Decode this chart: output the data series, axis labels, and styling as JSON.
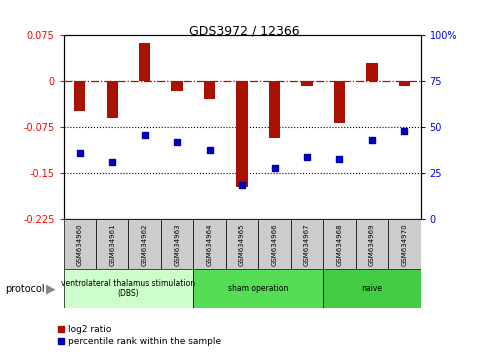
{
  "title": "GDS3972 / 12366",
  "samples": [
    "GSM634960",
    "GSM634961",
    "GSM634962",
    "GSM634963",
    "GSM634964",
    "GSM634965",
    "GSM634966",
    "GSM634967",
    "GSM634968",
    "GSM634969",
    "GSM634970"
  ],
  "log2_ratio": [
    -0.048,
    -0.06,
    0.063,
    -0.015,
    -0.028,
    -0.172,
    -0.093,
    -0.007,
    -0.068,
    0.03,
    -0.008
  ],
  "percentile_rank": [
    36,
    31,
    46,
    42,
    38,
    19,
    28,
    34,
    33,
    43,
    48
  ],
  "groups": [
    {
      "label": "ventrolateral thalamus stimulation\n(DBS)",
      "start": 0,
      "end": 3,
      "color": "#ccffcc"
    },
    {
      "label": "sham operation",
      "start": 4,
      "end": 7,
      "color": "#55dd55"
    },
    {
      "label": "naive",
      "start": 8,
      "end": 10,
      "color": "#44cc44"
    }
  ],
  "ylim_left": [
    -0.225,
    0.075
  ],
  "ylim_right": [
    0,
    100
  ],
  "yticks_left": [
    0.075,
    0,
    -0.075,
    -0.15,
    -0.225
  ],
  "yticks_right": [
    100,
    75,
    50,
    25,
    0
  ],
  "dotted_lines": [
    -0.075,
    -0.15
  ],
  "bar_color": "#aa1100",
  "dot_color": "#0000bb",
  "bar_width": 0.35,
  "sample_box_color": "#cccccc",
  "left_axis_color": "red",
  "right_axis_color": "blue"
}
